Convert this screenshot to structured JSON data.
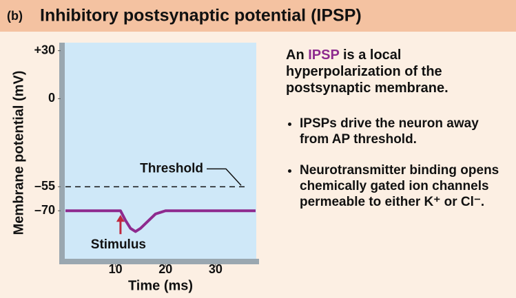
{
  "chart_data": {
    "type": "line",
    "panel_label": "(b)",
    "title": "Inhibitory postsynaptic potential (IPSP)",
    "y_label": "Membrane potential (mV)",
    "x_label": "Time (ms)",
    "xlim": [
      0,
      38
    ],
    "xticks": [
      10,
      20,
      30
    ],
    "ylim": [
      -100,
      35
    ],
    "yticks": [
      {
        "value": 30,
        "label": "+30"
      },
      0,
      {
        "value": -55,
        "label": "–55"
      },
      {
        "value": -70,
        "label": "–70"
      }
    ],
    "series": [
      {
        "color": "#8e2a8e",
        "x": [
          0,
          11,
          12,
          13,
          14,
          15,
          16,
          17,
          18,
          19,
          20,
          38
        ],
        "values": [
          -70,
          -70,
          -76,
          -81,
          -83,
          -81,
          -78,
          -75,
          -72,
          -71,
          -70,
          -70
        ]
      }
    ],
    "threshold": {
      "value": -55,
      "label": "Threshold"
    },
    "stimulus": {
      "x": 11,
      "label": "Stimulus",
      "color": "#c0283e"
    }
  },
  "side_text": {
    "heading_parts": [
      "An ",
      "IPSP",
      " is a local hyperpolarization of the postsynaptic membrane."
    ],
    "bullets": [
      "IPSPs drive the neuron away from AP threshold.",
      "Neurotransmitter binding opens chemically gated ion channels permeable to either K⁺ or Cl⁻."
    ]
  }
}
